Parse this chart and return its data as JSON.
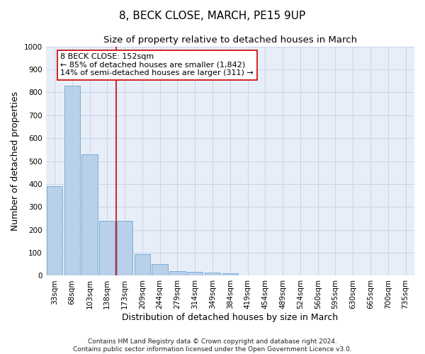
{
  "title_line1": "8, BECK CLOSE, MARCH, PE15 9UP",
  "title_line2": "Size of property relative to detached houses in March",
  "xlabel": "Distribution of detached houses by size in March",
  "ylabel": "Number of detached properties",
  "bin_labels": [
    "33sqm",
    "68sqm",
    "103sqm",
    "138sqm",
    "173sqm",
    "209sqm",
    "244sqm",
    "279sqm",
    "314sqm",
    "349sqm",
    "384sqm",
    "419sqm",
    "454sqm",
    "489sqm",
    "524sqm",
    "560sqm",
    "595sqm",
    "630sqm",
    "665sqm",
    "700sqm",
    "735sqm"
  ],
  "bin_values": [
    390,
    830,
    530,
    240,
    240,
    95,
    50,
    20,
    17,
    15,
    10,
    0,
    0,
    0,
    0,
    0,
    0,
    0,
    0,
    0,
    0
  ],
  "bar_color": "#b8d0ea",
  "bar_edgecolor": "#7aaed4",
  "bar_linewidth": 0.7,
  "vline_x": 3.5,
  "vline_color": "#cc0000",
  "vline_linewidth": 1.2,
  "annotation_line1": "8 BECK CLOSE: 152sqm",
  "annotation_line2": "← 85% of detached houses are smaller (1,842)",
  "annotation_line3": "14% of semi-detached houses are larger (311) →",
  "annotation_box_color": "#cc0000",
  "ylim": [
    0,
    1000
  ],
  "yticks": [
    0,
    100,
    200,
    300,
    400,
    500,
    600,
    700,
    800,
    900,
    1000
  ],
  "grid_color": "#c8d4e8",
  "background_color": "#e8eef8",
  "footnote_line1": "Contains HM Land Registry data © Crown copyright and database right 2024.",
  "footnote_line2": "Contains public sector information licensed under the Open Government Licence v3.0.",
  "title_fontsize": 11,
  "subtitle_fontsize": 9.5,
  "axis_label_fontsize": 9,
  "tick_fontsize": 7.5,
  "annotation_fontsize": 8,
  "footnote_fontsize": 6.5
}
